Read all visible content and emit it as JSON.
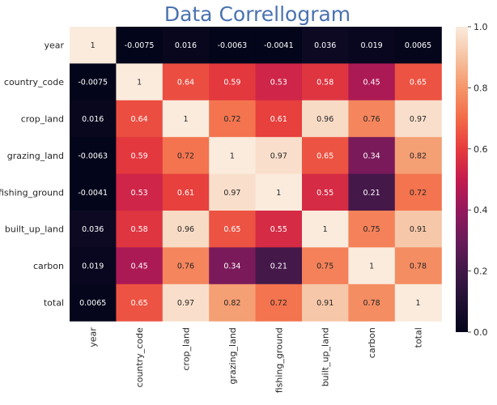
{
  "chart_data": {
    "type": "heatmap",
    "title": "Data Correllogram",
    "title_color": "#4a72b0",
    "labels": [
      "year",
      "country_code",
      "crop_land",
      "grazing_land",
      "fishing_ground",
      "built_up_land",
      "carbon",
      "total"
    ],
    "matrix": [
      [
        1,
        -0.0075,
        0.016,
        -0.0063,
        -0.0041,
        0.036,
        0.019,
        0.0065
      ],
      [
        -0.0075,
        1,
        0.64,
        0.59,
        0.53,
        0.58,
        0.45,
        0.65
      ],
      [
        0.016,
        0.64,
        1,
        0.72,
        0.61,
        0.96,
        0.76,
        0.97
      ],
      [
        -0.0063,
        0.59,
        0.72,
        1,
        0.97,
        0.65,
        0.34,
        0.82
      ],
      [
        -0.0041,
        0.53,
        0.61,
        0.97,
        1,
        0.55,
        0.21,
        0.72
      ],
      [
        0.036,
        0.58,
        0.96,
        0.65,
        0.55,
        1,
        0.75,
        0.91
      ],
      [
        0.019,
        0.45,
        0.76,
        0.34,
        0.21,
        0.75,
        1,
        0.78
      ],
      [
        0.0065,
        0.65,
        0.97,
        0.82,
        0.72,
        0.91,
        0.78,
        1
      ]
    ],
    "colormap": "rocket",
    "vmin": 0,
    "vmax": 1,
    "colorbar_ticks": [
      "0.0",
      "0.2",
      "0.4",
      "0.6",
      "0.8",
      "1.0"
    ],
    "colorbar_tick_values": [
      0,
      0.2,
      0.4,
      0.6,
      0.8,
      1.0
    ]
  }
}
